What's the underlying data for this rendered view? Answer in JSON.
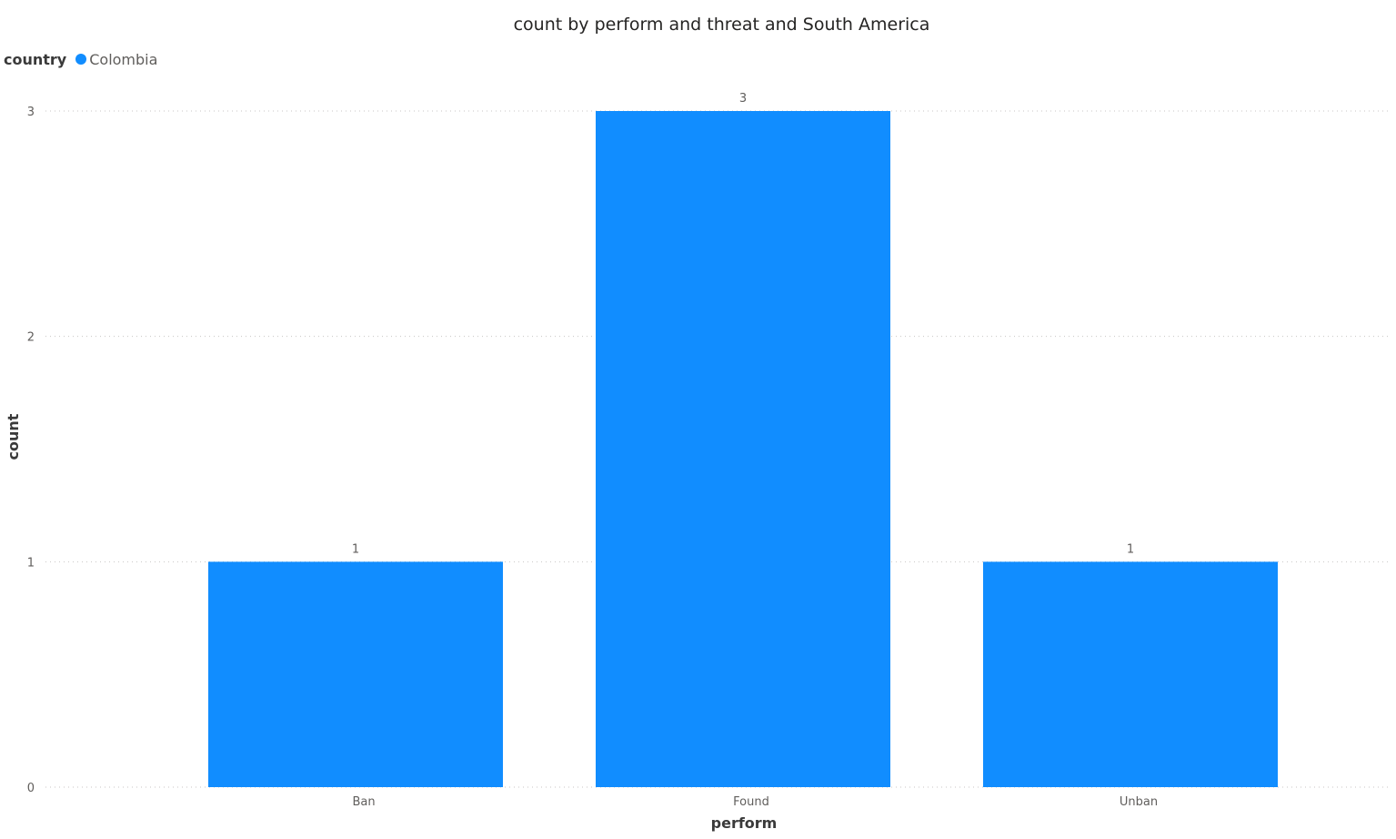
{
  "chart_data": {
    "type": "bar",
    "title": "count by perform and threat and South America",
    "legend": {
      "title": "country",
      "placement": "top-left",
      "items": [
        {
          "name": "Colombia",
          "color": "#118DFF"
        }
      ]
    },
    "categories": [
      "Ban",
      "Found",
      "Unban"
    ],
    "series": [
      {
        "name": "Colombia",
        "values": [
          1,
          3,
          1
        ],
        "color": "#118DFF"
      }
    ],
    "xlabel": "perform",
    "ylabel": "count",
    "ylim": [
      0,
      3
    ],
    "yticks": [
      "0",
      "1",
      "2",
      "3"
    ],
    "data_labels": [
      "1",
      "3",
      "1"
    ],
    "grid": true
  }
}
